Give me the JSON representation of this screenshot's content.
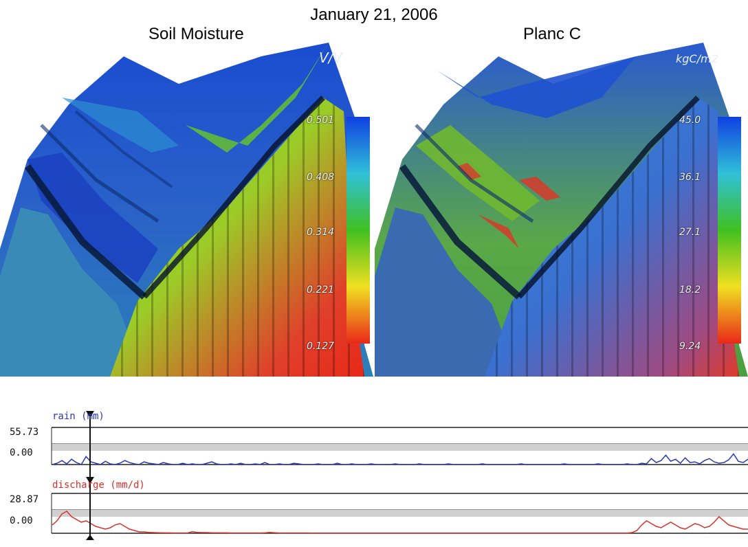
{
  "date_title": "January 21, 2006",
  "chart_data": [
    {
      "type": "heatmap",
      "title": "Soil Moisture",
      "colorbar": {
        "unit": "V/V",
        "ticks": [
          "0.501",
          "0.408",
          "0.314",
          "0.221",
          "0.127"
        ],
        "min": 0.127,
        "max": 0.501,
        "colors": [
          "#e82818",
          "#f0e020",
          "#40c020",
          "#30c0d8",
          "#1040e0"
        ]
      }
    },
    {
      "type": "heatmap",
      "title": "Planc C",
      "colorbar": {
        "unit": "kgC/m2",
        "ticks": [
          "45.0",
          "36.1",
          "27.1",
          "18.2",
          "9.24"
        ],
        "min": 9.24,
        "max": 45.0,
        "colors": [
          "#e82818",
          "#f0e020",
          "#40c020",
          "#30c0d8",
          "#1040e0"
        ]
      }
    },
    {
      "type": "line",
      "series": [
        {
          "name": "rain (mm)",
          "color": "#2a38b0",
          "ymax_label": "55.73",
          "ymin_label": "0.00",
          "ymin": 0,
          "ymax": 55.73,
          "values": [
            0,
            2,
            6,
            1,
            8,
            3,
            0,
            12,
            4,
            2,
            0,
            5,
            1,
            0,
            2,
            6,
            3,
            1,
            0,
            4,
            2,
            1,
            0,
            3,
            1,
            0,
            0,
            2,
            0,
            1,
            0,
            0,
            2,
            4,
            1,
            0,
            0,
            1,
            0,
            2,
            0,
            0,
            1,
            0,
            3,
            0,
            0,
            1,
            0,
            0,
            2,
            1,
            0,
            0,
            0,
            1,
            0,
            0,
            0,
            2,
            0,
            0,
            1,
            0,
            0,
            0,
            1,
            0,
            0,
            0,
            0,
            1,
            0,
            0,
            0,
            0,
            1,
            0,
            0,
            0,
            0,
            0,
            1,
            0,
            0,
            0,
            0,
            0,
            0,
            1,
            0,
            0,
            0,
            0,
            0,
            0,
            0,
            1,
            0,
            0,
            0,
            0,
            0,
            0,
            0,
            0,
            1,
            0,
            0,
            0,
            0,
            0,
            0,
            1,
            0,
            0,
            0,
            0,
            0,
            1,
            0,
            0,
            2,
            1,
            9,
            3,
            6,
            14,
            5,
            8,
            2,
            10,
            3,
            4,
            1,
            6,
            9,
            4,
            2,
            3,
            7,
            16,
            5,
            3,
            8
          ]
        },
        {
          "name": "discharge (mm/d)",
          "color": "#d83028",
          "ymax_label": "28.87",
          "ymin_label": "0.00",
          "ymin": 0,
          "ymax": 28.87,
          "values": [
            6,
            9,
            14,
            16,
            12,
            10,
            8,
            9,
            7,
            5,
            4,
            3,
            4,
            6,
            7,
            5,
            3,
            2,
            1,
            1,
            0.6,
            0.5,
            0.4,
            0.3,
            0.3,
            0.2,
            0.2,
            0.2,
            0.2,
            1.2,
            0.6,
            0.5,
            0.5,
            0.4,
            0.3,
            0.3,
            0.3,
            0.2,
            0.2,
            0.2,
            0.2,
            0.2,
            0.2,
            0.2,
            0.3,
            0.6,
            0.4,
            0.2,
            0.2,
            0.2,
            0.2,
            0.2,
            0.2,
            0.2,
            0.1,
            0.1,
            0.1,
            0.1,
            0.1,
            0.1,
            0.1,
            0.1,
            0.1,
            0.1,
            0.1,
            0.1,
            0.1,
            0.1,
            0.1,
            0.1,
            0.1,
            0.1,
            0.1,
            0.1,
            0.1,
            0.1,
            0.1,
            0.1,
            0.1,
            0.1,
            0.1,
            0.1,
            0.1,
            0.1,
            0.1,
            0.1,
            0.1,
            0.1,
            0.1,
            0.1,
            0.1,
            0.1,
            0.1,
            0.1,
            0.1,
            0.1,
            0.1,
            0.1,
            0.1,
            0.1,
            0.1,
            0.1,
            0.1,
            0.1,
            0.1,
            0.1,
            0.1,
            0.1,
            0.1,
            0.1,
            0.1,
            0.1,
            0.1,
            0.1,
            0.1,
            0.1,
            0.1,
            0.1,
            0.1,
            0.1,
            0.5,
            2,
            6,
            9,
            7,
            5,
            4,
            6,
            8,
            6,
            4,
            3,
            5,
            7,
            6,
            4,
            5,
            8,
            12,
            9,
            6,
            5,
            4,
            3,
            3
          ]
        }
      ]
    }
  ]
}
